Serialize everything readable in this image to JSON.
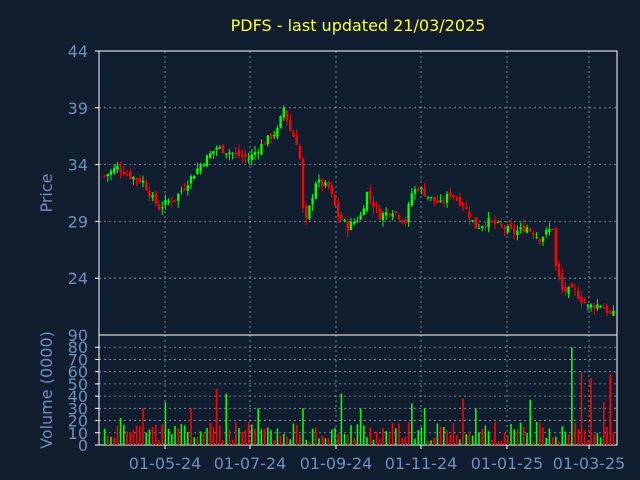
{
  "chart_data": {
    "type": "candlestick",
    "title": "PDFS - last updated 21/03/2025",
    "colors": {
      "background": "#111e30",
      "up": "#00ff00",
      "down": "#ff0000",
      "axis_text": "#6f8fbf",
      "title": "#ffff33",
      "grid": "#ffffff"
    },
    "grid": true,
    "x_tick_labels": [
      "01-05-24",
      "01-07-24",
      "01-09-24",
      "01-11-24",
      "01-01-25",
      "01-03-25"
    ],
    "price_panel": {
      "ylabel": "Price",
      "ylim": [
        19,
        44
      ],
      "y_ticks": [
        24,
        29,
        34,
        39,
        44
      ],
      "bottom_label": "90",
      "close_path": [
        [
          0,
          33.0
        ],
        [
          4,
          33.8
        ],
        [
          8,
          33.0
        ],
        [
          12,
          32.5
        ],
        [
          15,
          31.0
        ],
        [
          17,
          30.2
        ],
        [
          20,
          30.8
        ],
        [
          22,
          31.0
        ],
        [
          26,
          32.5
        ],
        [
          30,
          34.0
        ],
        [
          35,
          35.5
        ],
        [
          40,
          35.0
        ],
        [
          45,
          34.5
        ],
        [
          50,
          36.0
        ],
        [
          54,
          37.0
        ],
        [
          56,
          39.0
        ],
        [
          58,
          37.0
        ],
        [
          60,
          36.0
        ],
        [
          61,
          34.5
        ],
        [
          62,
          30.0
        ],
        [
          63,
          29.0
        ],
        [
          66,
          32.5
        ],
        [
          70,
          32.0
        ],
        [
          73,
          29.5
        ],
        [
          76,
          28.5
        ],
        [
          80,
          29.5
        ],
        [
          82,
          31.5
        ],
        [
          86,
          29.5
        ],
        [
          90,
          30.0
        ],
        [
          94,
          29.0
        ],
        [
          96,
          31.5
        ],
        [
          98,
          32.0
        ],
        [
          102,
          31.0
        ],
        [
          105,
          30.5
        ],
        [
          108,
          31.5
        ],
        [
          112,
          30.5
        ],
        [
          116,
          28.5
        ],
        [
          120,
          29.0
        ],
        [
          124,
          28.5
        ],
        [
          128,
          28.0
        ],
        [
          132,
          28.5
        ],
        [
          136,
          27.5
        ],
        [
          140,
          28.5
        ],
        [
          141,
          25.0
        ],
        [
          143,
          23.0
        ],
        [
          147,
          22.8
        ],
        [
          151,
          21.5
        ],
        [
          155,
          21.7
        ],
        [
          158,
          20.8
        ]
      ]
    },
    "volume_panel": {
      "ylabel": "Volume (0000)",
      "ylim": [
        0,
        90
      ],
      "y_ticks": [
        0,
        10,
        20,
        30,
        40,
        50,
        60,
        70,
        80
      ],
      "spikes": [
        [
          5,
          22
        ],
        [
          12,
          30
        ],
        [
          19,
          35
        ],
        [
          27,
          30
        ],
        [
          35,
          46
        ],
        [
          38,
          42
        ],
        [
          48,
          30
        ],
        [
          62,
          30
        ],
        [
          74,
          42
        ],
        [
          80,
          30
        ],
        [
          96,
          34
        ],
        [
          100,
          30
        ],
        [
          112,
          38
        ],
        [
          116,
          30
        ],
        [
          133,
          37
        ],
        [
          146,
          80
        ],
        [
          149,
          60
        ],
        [
          152,
          55
        ],
        [
          156,
          35
        ],
        [
          158,
          58
        ]
      ]
    }
  }
}
